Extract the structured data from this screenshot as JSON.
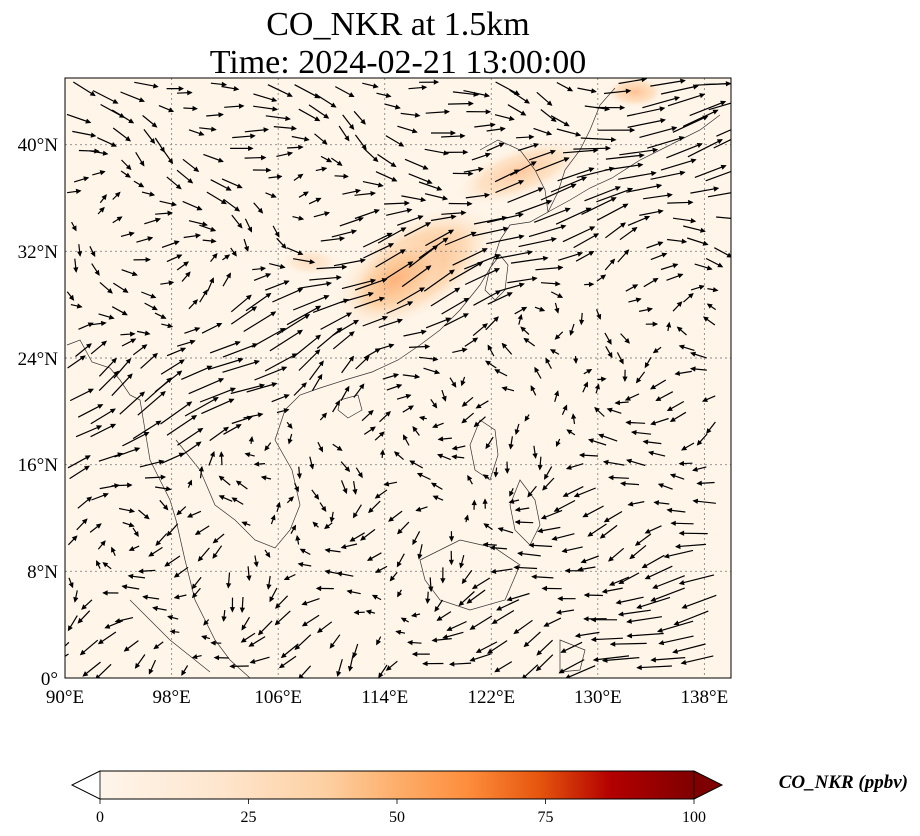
{
  "title": {
    "line1": "CO_NKR at 1.5km",
    "line2": "Time: 2024-02-21 13:00:00"
  },
  "map": {
    "lon_range": [
      90,
      140
    ],
    "lat_range": [
      0,
      45
    ],
    "lon_ticks": [
      "90°E",
      "98°E",
      "106°E",
      "114°E",
      "122°E",
      "130°E",
      "138°E"
    ],
    "lat_ticks": [
      "0°",
      "8°N",
      "16°N",
      "24°N",
      "32°N",
      "40°N"
    ],
    "background_color": "#fff5e9",
    "arrow_color": "#000000"
  },
  "colorbar": {
    "label": "CO_NKR (ppbv)",
    "ticks": [
      "0",
      "25",
      "50",
      "75",
      "100"
    ],
    "range": [
      0,
      100
    ],
    "colors": [
      "#fff5eb",
      "#fdd8b0",
      "#fdae6b",
      "#f16913",
      "#d94801",
      "#a50f15",
      "#7f0000"
    ]
  }
}
